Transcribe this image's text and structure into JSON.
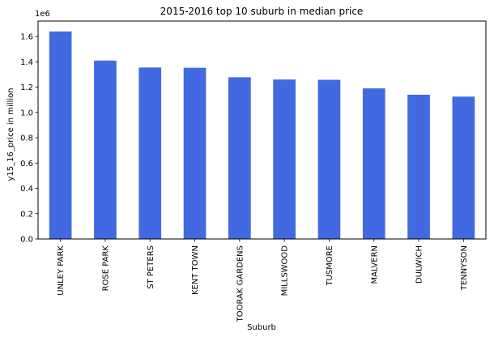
{
  "chart_data": {
    "type": "bar",
    "title": "2015-2016 top 10 suburb in median price",
    "xlabel": "Suburb",
    "ylabel": "y15_16_price in million",
    "offset_label": "1e6",
    "categories": [
      "UNLEY PARK",
      "ROSE PARK",
      "ST PETERS",
      "KENT TOWN",
      "TOORAK GARDENS",
      "MILLSWOOD",
      "TUSMORE",
      "MALVERN",
      "DULWICH",
      "TENNYSON"
    ],
    "values": [
      1640000,
      1410000,
      1355000,
      1353000,
      1278000,
      1260000,
      1258000,
      1190000,
      1140000,
      1125000
    ],
    "ylim": [
      0,
      1722000
    ],
    "yticks": [
      0.0,
      0.2,
      0.4,
      0.6,
      0.8,
      1.0,
      1.2,
      1.4,
      1.6
    ],
    "ytick_labels": [
      "0.0",
      "0.2",
      "0.4",
      "0.6",
      "0.8",
      "1.0",
      "1.2",
      "1.4",
      "1.6"
    ],
    "colors": {
      "bar": "#4169e1",
      "axis": "#000000",
      "background": "#ffffff"
    },
    "grid": false,
    "legend": "none"
  }
}
